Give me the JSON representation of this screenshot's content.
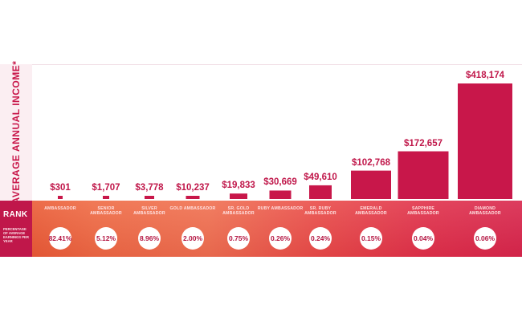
{
  "chart_data": {
    "type": "bar",
    "ylabel": "AVERAGE ANNUAL INCOME*",
    "categories": [
      "AMBASSADOR",
      "SENIOR AMBASSADOR",
      "SILVER AMBASSADOR",
      "GOLD AMBASSADOR",
      "SR. GOLD AMBASSADOR",
      "RUBY AMBASSADOR",
      "SR. RUBY AMBASSADOR",
      "EMERALD AMBASSADOR",
      "SAPPHIRE AMBASSADOR",
      "DIAMOND AMBASSADOR"
    ],
    "values": [
      301,
      1707,
      3778,
      10237,
      19833,
      30669,
      49610,
      102768,
      172657,
      418174
    ],
    "value_labels": [
      "$301",
      "$1,707",
      "$3,778",
      "$10,237",
      "$19,833",
      "$30,669",
      "$49,610",
      "$102,768",
      "$172,657",
      "$418,174"
    ],
    "percent_labels": [
      "82.41%",
      "5.12%",
      "8.96%",
      "2.00%",
      "0.75%",
      "0.26%",
      "0.24%",
      "0.15%",
      "0.04%",
      "0.06%"
    ],
    "percentages": [
      82.41,
      5.12,
      8.96,
      2.0,
      0.75,
      0.26,
      0.24,
      0.15,
      0.04,
      0.06
    ],
    "rank_title": "RANK",
    "rank_note": "PERCENTAGE OF AVERAGE EARNINGS PER YEAR",
    "legend": "none",
    "grid": false
  },
  "colors": {
    "bar": "#c8174a",
    "text_accent": "#c0174a"
  }
}
